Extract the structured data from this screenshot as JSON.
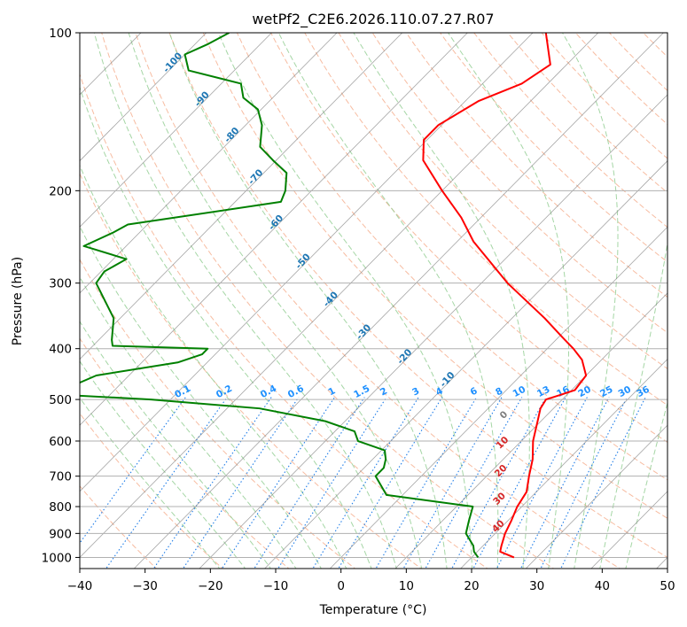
{
  "chart_data": {
    "type": "skew-t",
    "title": "wetPf2_C2E6.2026.110.07.27.R07",
    "xlabel": "Temperature (°C)",
    "ylabel": "Pressure (hPa)",
    "xlim": [
      -40,
      50
    ],
    "ylim": [
      1050,
      100
    ],
    "x_ticks": [
      -40,
      -30,
      -20,
      -10,
      0,
      10,
      20,
      30,
      40,
      50
    ],
    "y_ticks": [
      100,
      200,
      300,
      400,
      500,
      600,
      700,
      800,
      900,
      1000
    ],
    "temperature_series": {
      "name": "Temperature",
      "color": "#ff0000",
      "points": [
        [
          1000,
          26.5
        ],
        [
          975,
          23.5
        ],
        [
          950,
          22.8
        ],
        [
          900,
          21.5
        ],
        [
          850,
          20.5
        ],
        [
          800,
          19.3
        ],
        [
          750,
          18.5
        ],
        [
          700,
          16.5
        ],
        [
          650,
          14.5
        ],
        [
          600,
          11.8
        ],
        [
          550,
          9.5
        ],
        [
          520,
          8.0
        ],
        [
          500,
          7.5
        ],
        [
          490,
          9.0
        ],
        [
          480,
          10.5
        ],
        [
          450,
          10.0
        ],
        [
          420,
          7.0
        ],
        [
          400,
          4.0
        ],
        [
          380,
          0.5
        ],
        [
          350,
          -5.0
        ],
        [
          300,
          -16.0
        ],
        [
          250,
          -27.5
        ],
        [
          225,
          -33.0
        ],
        [
          200,
          -40.0
        ],
        [
          175,
          -47.5
        ],
        [
          160,
          -50.5
        ],
        [
          150,
          -50.5
        ],
        [
          135,
          -48.0
        ],
        [
          125,
          -44.0
        ],
        [
          115,
          -42.5
        ],
        [
          100,
          -48.0
        ]
      ]
    },
    "dewpoint_series": {
      "name": "Dewpoint",
      "color": "#008000",
      "points": [
        [
          1000,
          21.0
        ],
        [
          975,
          19.5
        ],
        [
          950,
          18.5
        ],
        [
          900,
          15.5
        ],
        [
          850,
          14.0
        ],
        [
          800,
          12.5
        ],
        [
          760,
          -2.5
        ],
        [
          700,
          -7.0
        ],
        [
          675,
          -7.0
        ],
        [
          650,
          -8.0
        ],
        [
          625,
          -9.5
        ],
        [
          600,
          -15.0
        ],
        [
          575,
          -17.0
        ],
        [
          550,
          -23.0
        ],
        [
          520,
          -35.0
        ],
        [
          500,
          -53.0
        ],
        [
          490,
          -67.0
        ],
        [
          470,
          -67.0
        ],
        [
          450,
          -65.0
        ],
        [
          425,
          -54.5
        ],
        [
          410,
          -52.0
        ],
        [
          400,
          -52.0
        ],
        [
          395,
          -67.0
        ],
        [
          385,
          -68.0
        ],
        [
          350,
          -71.0
        ],
        [
          300,
          -79.0
        ],
        [
          285,
          -79.5
        ],
        [
          270,
          -78.0
        ],
        [
          255,
          -86.5
        ],
        [
          240,
          -84.0
        ],
        [
          232,
          -83.0
        ],
        [
          210,
          -63.0
        ],
        [
          200,
          -64.0
        ],
        [
          185,
          -66.5
        ],
        [
          175,
          -70.5
        ],
        [
          165,
          -74.5
        ],
        [
          150,
          -77.5
        ],
        [
          140,
          -80.5
        ],
        [
          133,
          -84.5
        ],
        [
          125,
          -87.0
        ],
        [
          118,
          -97.0
        ],
        [
          110,
          -100.0
        ],
        [
          105,
          -98.0
        ],
        [
          100,
          -96.5
        ]
      ]
    },
    "mixing_ratio_labels": [
      "0.1",
      "0.2",
      "0.4",
      "0.6",
      "1",
      "1.5",
      "2",
      "3",
      "4",
      "6",
      "8",
      "10",
      "13",
      "16",
      "20",
      "25",
      "30",
      "36"
    ],
    "moist_adiabat_labels": [
      "0",
      "10",
      "20",
      "30",
      "40"
    ],
    "dry_adiabat_labels": [
      "-100",
      "-90",
      "-80",
      "-70",
      "-60",
      "-50",
      "-40",
      "-30",
      "-20",
      "-10"
    ],
    "colors": {
      "temperature": "#ff0000",
      "dewpoint": "#008000",
      "dry_adiabat": "#f4a582",
      "moist_adiabat": "#8fcc8f",
      "mixing_ratio": "#1f7de8",
      "isotherm": "#7f7f7f",
      "grid": "#b0b0b0",
      "moist_label": "#d62728",
      "dry_label": "#1f77b4",
      "mr_label": "#1e90ff",
      "zero_isotherm_label": "#7f7f7f"
    }
  }
}
